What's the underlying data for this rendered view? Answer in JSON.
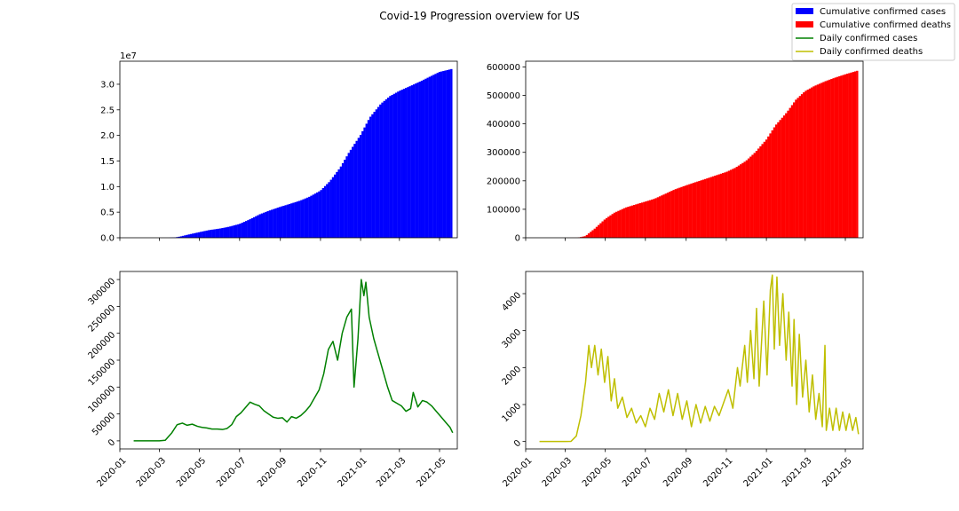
{
  "figure": {
    "title": "Covid-19 Progression overview for US"
  },
  "legend": {
    "placement": "top-right",
    "entries": [
      {
        "label": "Cumulative confirmed cases",
        "color": "#0000ff",
        "kind": "bar"
      },
      {
        "label": "Cumulative confirmed deaths",
        "color": "#ff0000",
        "kind": "bar"
      },
      {
        "label": "Daily confirmed cases",
        "color": "#008000",
        "kind": "line"
      },
      {
        "label": "Daily confirmed deaths",
        "color": "#bfbf00",
        "kind": "line"
      }
    ]
  },
  "x_ticks": [
    "2020-01",
    "2020-03",
    "2020-05",
    "2020-07",
    "2020-09",
    "2020-11",
    "2021-01",
    "2021-03",
    "2021-05"
  ],
  "chart_data": [
    {
      "id": "cum-cases",
      "type": "bar",
      "color": "#0000ff",
      "xlim": [
        "2020-01-01",
        "2021-05-28"
      ],
      "ylim": [
        0,
        34500000
      ],
      "y_offset_label": "1e7",
      "y_ticks": [
        {
          "value": 0,
          "label": "0.0"
        },
        {
          "value": 5000000,
          "label": "0.5"
        },
        {
          "value": 10000000,
          "label": "1.0"
        },
        {
          "value": 15000000,
          "label": "1.5"
        },
        {
          "value": 20000000,
          "label": "2.0"
        },
        {
          "value": 25000000,
          "label": "2.5"
        },
        {
          "value": 30000000,
          "label": "3.0"
        }
      ],
      "x_ticks_labeled": false,
      "points": [
        [
          "2020-01-22",
          0
        ],
        [
          "2020-03-01",
          50
        ],
        [
          "2020-03-15",
          3500
        ],
        [
          "2020-03-25",
          70000
        ],
        [
          "2020-04-01",
          220000
        ],
        [
          "2020-04-15",
          650000
        ],
        [
          "2020-05-01",
          1100000
        ],
        [
          "2020-05-15",
          1480000
        ],
        [
          "2020-06-01",
          1800000
        ],
        [
          "2020-06-15",
          2150000
        ],
        [
          "2020-07-01",
          2700000
        ],
        [
          "2020-07-15",
          3500000
        ],
        [
          "2020-08-01",
          4600000
        ],
        [
          "2020-08-15",
          5300000
        ],
        [
          "2020-09-01",
          6050000
        ],
        [
          "2020-09-15",
          6600000
        ],
        [
          "2020-10-01",
          7250000
        ],
        [
          "2020-10-15",
          8000000
        ],
        [
          "2020-11-01",
          9200000
        ],
        [
          "2020-11-15",
          11000000
        ],
        [
          "2020-12-01",
          13700000
        ],
        [
          "2020-12-15",
          16800000
        ],
        [
          "2021-01-01",
          20100000
        ],
        [
          "2021-01-15",
          23500000
        ],
        [
          "2021-02-01",
          26200000
        ],
        [
          "2021-02-15",
          27700000
        ],
        [
          "2021-03-01",
          28700000
        ],
        [
          "2021-03-15",
          29500000
        ],
        [
          "2021-04-01",
          30500000
        ],
        [
          "2021-04-15",
          31400000
        ],
        [
          "2021-05-01",
          32400000
        ],
        [
          "2021-05-20",
          33000000
        ]
      ]
    },
    {
      "id": "cum-deaths",
      "type": "bar",
      "color": "#ff0000",
      "xlim": [
        "2020-01-01",
        "2021-05-28"
      ],
      "ylim": [
        0,
        620000
      ],
      "y_ticks": [
        {
          "value": 0,
          "label": "0"
        },
        {
          "value": 100000,
          "label": "100000"
        },
        {
          "value": 200000,
          "label": "200000"
        },
        {
          "value": 300000,
          "label": "300000"
        },
        {
          "value": 400000,
          "label": "400000"
        },
        {
          "value": 500000,
          "label": "500000"
        },
        {
          "value": 600000,
          "label": "600000"
        }
      ],
      "x_ticks_labeled": false,
      "points": [
        [
          "2020-01-22",
          0
        ],
        [
          "2020-03-01",
          1
        ],
        [
          "2020-03-20",
          250
        ],
        [
          "2020-04-01",
          6000
        ],
        [
          "2020-04-15",
          32000
        ],
        [
          "2020-05-01",
          66000
        ],
        [
          "2020-05-15",
          88000
        ],
        [
          "2020-06-01",
          106000
        ],
        [
          "2020-06-15",
          116000
        ],
        [
          "2020-07-01",
          127000
        ],
        [
          "2020-07-15",
          137000
        ],
        [
          "2020-08-01",
          155000
        ],
        [
          "2020-08-15",
          170000
        ],
        [
          "2020-09-01",
          184000
        ],
        [
          "2020-09-15",
          195000
        ],
        [
          "2020-10-01",
          207000
        ],
        [
          "2020-10-15",
          218000
        ],
        [
          "2020-11-01",
          231000
        ],
        [
          "2020-11-15",
          246000
        ],
        [
          "2020-12-01",
          270000
        ],
        [
          "2020-12-15",
          300000
        ],
        [
          "2021-01-01",
          345000
        ],
        [
          "2021-01-15",
          395000
        ],
        [
          "2021-02-01",
          440000
        ],
        [
          "2021-02-15",
          485000
        ],
        [
          "2021-03-01",
          515000
        ],
        [
          "2021-03-15",
          533000
        ],
        [
          "2021-04-01",
          550000
        ],
        [
          "2021-04-15",
          562000
        ],
        [
          "2021-05-01",
          574000
        ],
        [
          "2021-05-20",
          587000
        ]
      ]
    },
    {
      "id": "daily-cases",
      "type": "line",
      "color": "#008000",
      "xlim": [
        "2020-01-01",
        "2021-05-28"
      ],
      "ylim": [
        -15000,
        315000
      ],
      "y_ticks": [
        {
          "value": 0,
          "label": "0"
        },
        {
          "value": 50000,
          "label": "50000"
        },
        {
          "value": 100000,
          "label": "100000"
        },
        {
          "value": 150000,
          "label": "150000"
        },
        {
          "value": 200000,
          "label": "200000"
        },
        {
          "value": 250000,
          "label": "250000"
        },
        {
          "value": 300000,
          "label": "300000"
        }
      ],
      "x_ticks_labeled": true,
      "points": [
        [
          "2020-01-22",
          0
        ],
        [
          "2020-03-01",
          0
        ],
        [
          "2020-03-10",
          1000
        ],
        [
          "2020-03-20",
          15000
        ],
        [
          "2020-03-28",
          30000
        ],
        [
          "2020-04-05",
          33000
        ],
        [
          "2020-04-12",
          29000
        ],
        [
          "2020-04-20",
          31000
        ],
        [
          "2020-04-28",
          27000
        ],
        [
          "2020-05-05",
          25000
        ],
        [
          "2020-05-12",
          24000
        ],
        [
          "2020-05-20",
          22000
        ],
        [
          "2020-05-28",
          22000
        ],
        [
          "2020-06-05",
          21000
        ],
        [
          "2020-06-12",
          23000
        ],
        [
          "2020-06-19",
          30000
        ],
        [
          "2020-06-26",
          45000
        ],
        [
          "2020-07-03",
          52000
        ],
        [
          "2020-07-10",
          62000
        ],
        [
          "2020-07-17",
          72000
        ],
        [
          "2020-07-24",
          68000
        ],
        [
          "2020-07-31",
          65000
        ],
        [
          "2020-08-07",
          56000
        ],
        [
          "2020-08-14",
          50000
        ],
        [
          "2020-08-21",
          44000
        ],
        [
          "2020-08-28",
          42000
        ],
        [
          "2020-09-04",
          43000
        ],
        [
          "2020-09-11",
          35000
        ],
        [
          "2020-09-18",
          45000
        ],
        [
          "2020-09-25",
          42000
        ],
        [
          "2020-10-02",
          47000
        ],
        [
          "2020-10-09",
          55000
        ],
        [
          "2020-10-16",
          65000
        ],
        [
          "2020-10-23",
          80000
        ],
        [
          "2020-10-30",
          95000
        ],
        [
          "2020-11-06",
          125000
        ],
        [
          "2020-11-13",
          170000
        ],
        [
          "2020-11-20",
          185000
        ],
        [
          "2020-11-27",
          150000
        ],
        [
          "2020-12-04",
          200000
        ],
        [
          "2020-12-11",
          230000
        ],
        [
          "2020-12-18",
          245000
        ],
        [
          "2020-12-22",
          100000
        ],
        [
          "2020-12-28",
          190000
        ],
        [
          "2021-01-02",
          300000
        ],
        [
          "2021-01-06",
          270000
        ],
        [
          "2021-01-09",
          295000
        ],
        [
          "2021-01-14",
          230000
        ],
        [
          "2021-01-21",
          190000
        ],
        [
          "2021-01-28",
          160000
        ],
        [
          "2021-02-04",
          130000
        ],
        [
          "2021-02-11",
          100000
        ],
        [
          "2021-02-18",
          75000
        ],
        [
          "2021-02-25",
          70000
        ],
        [
          "2021-03-04",
          65000
        ],
        [
          "2021-03-11",
          55000
        ],
        [
          "2021-03-18",
          60000
        ],
        [
          "2021-03-22",
          90000
        ],
        [
          "2021-03-29",
          63000
        ],
        [
          "2021-04-05",
          75000
        ],
        [
          "2021-04-12",
          72000
        ],
        [
          "2021-04-19",
          65000
        ],
        [
          "2021-04-26",
          55000
        ],
        [
          "2021-05-03",
          45000
        ],
        [
          "2021-05-10",
          35000
        ],
        [
          "2021-05-17",
          25000
        ],
        [
          "2021-05-21",
          15000
        ]
      ]
    },
    {
      "id": "daily-deaths",
      "type": "line",
      "color": "#bfbf00",
      "xlim": [
        "2020-01-01",
        "2021-05-28"
      ],
      "ylim": [
        -200,
        4600
      ],
      "y_ticks": [
        {
          "value": 0,
          "label": "0"
        },
        {
          "value": 1000,
          "label": "1000"
        },
        {
          "value": 2000,
          "label": "2000"
        },
        {
          "value": 3000,
          "label": "3000"
        },
        {
          "value": 4000,
          "label": "4000"
        }
      ],
      "x_ticks_labeled": true,
      "points": [
        [
          "2020-01-22",
          0
        ],
        [
          "2020-03-01",
          0
        ],
        [
          "2020-03-10",
          5
        ],
        [
          "2020-03-18",
          150
        ],
        [
          "2020-03-25",
          700
        ],
        [
          "2020-04-01",
          1600
        ],
        [
          "2020-04-06",
          2600
        ],
        [
          "2020-04-10",
          2000
        ],
        [
          "2020-04-15",
          2600
        ],
        [
          "2020-04-20",
          1800
        ],
        [
          "2020-04-25",
          2500
        ],
        [
          "2020-04-30",
          1600
        ],
        [
          "2020-05-05",
          2300
        ],
        [
          "2020-05-10",
          1100
        ],
        [
          "2020-05-15",
          1700
        ],
        [
          "2020-05-20",
          900
        ],
        [
          "2020-05-27",
          1200
        ],
        [
          "2020-06-03",
          650
        ],
        [
          "2020-06-10",
          900
        ],
        [
          "2020-06-17",
          500
        ],
        [
          "2020-06-24",
          700
        ],
        [
          "2020-07-01",
          400
        ],
        [
          "2020-07-08",
          900
        ],
        [
          "2020-07-15",
          600
        ],
        [
          "2020-07-22",
          1300
        ],
        [
          "2020-07-29",
          800
        ],
        [
          "2020-08-05",
          1400
        ],
        [
          "2020-08-12",
          700
        ],
        [
          "2020-08-19",
          1300
        ],
        [
          "2020-08-26",
          600
        ],
        [
          "2020-09-02",
          1100
        ],
        [
          "2020-09-09",
          400
        ],
        [
          "2020-09-16",
          1000
        ],
        [
          "2020-09-23",
          500
        ],
        [
          "2020-09-30",
          950
        ],
        [
          "2020-10-07",
          550
        ],
        [
          "2020-10-14",
          950
        ],
        [
          "2020-10-21",
          700
        ],
        [
          "2020-10-28",
          1050
        ],
        [
          "2020-11-04",
          1400
        ],
        [
          "2020-11-11",
          900
        ],
        [
          "2020-11-18",
          2000
        ],
        [
          "2020-11-22",
          1500
        ],
        [
          "2020-11-29",
          2600
        ],
        [
          "2020-12-03",
          1600
        ],
        [
          "2020-12-08",
          3000
        ],
        [
          "2020-12-13",
          1700
        ],
        [
          "2020-12-17",
          3600
        ],
        [
          "2020-12-21",
          1500
        ],
        [
          "2020-12-28",
          3800
        ],
        [
          "2021-01-02",
          1800
        ],
        [
          "2021-01-07",
          4100
        ],
        [
          "2021-01-10",
          4500
        ],
        [
          "2021-01-13",
          2500
        ],
        [
          "2021-01-17",
          4450
        ],
        [
          "2021-01-21",
          2600
        ],
        [
          "2021-01-26",
          4000
        ],
        [
          "2021-01-31",
          2200
        ],
        [
          "2021-02-04",
          3500
        ],
        [
          "2021-02-09",
          1500
        ],
        [
          "2021-02-12",
          3300
        ],
        [
          "2021-02-16",
          1000
        ],
        [
          "2021-02-20",
          2900
        ],
        [
          "2021-02-25",
          1200
        ],
        [
          "2021-03-02",
          2200
        ],
        [
          "2021-03-07",
          800
        ],
        [
          "2021-03-12",
          1800
        ],
        [
          "2021-03-17",
          600
        ],
        [
          "2021-03-22",
          1300
        ],
        [
          "2021-03-27",
          400
        ],
        [
          "2021-03-31",
          2600
        ],
        [
          "2021-04-02",
          300
        ],
        [
          "2021-04-07",
          900
        ],
        [
          "2021-04-12",
          300
        ],
        [
          "2021-04-17",
          900
        ],
        [
          "2021-04-22",
          300
        ],
        [
          "2021-04-27",
          800
        ],
        [
          "2021-05-02",
          300
        ],
        [
          "2021-05-07",
          750
        ],
        [
          "2021-05-12",
          300
        ],
        [
          "2021-05-17",
          650
        ],
        [
          "2021-05-21",
          200
        ]
      ]
    }
  ]
}
